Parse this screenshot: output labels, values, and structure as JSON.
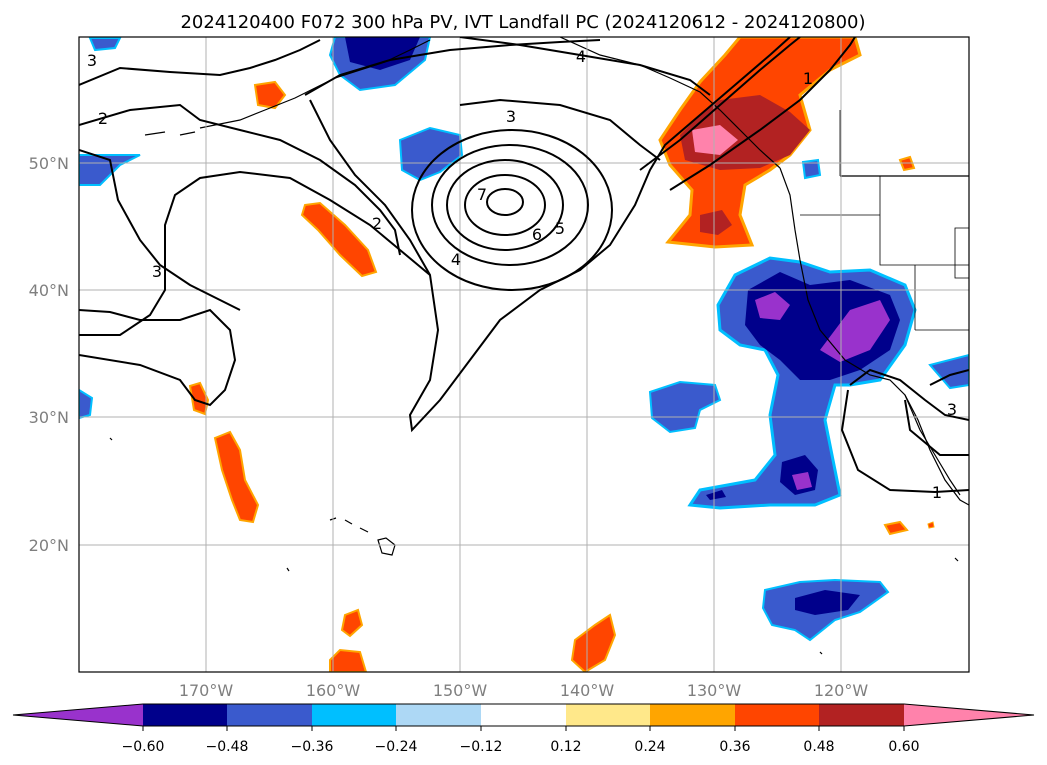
{
  "figure": {
    "title": "2024120400 F072 300 hPa PV, IVT Landfall PC (2024120612 - 2024120800)"
  },
  "map": {
    "lat_labels": [
      "50°N",
      "40°N",
      "30°N",
      "20°N"
    ],
    "lon_labels": [
      "170°W",
      "160°W",
      "150°W",
      "140°W",
      "130°W",
      "120°W"
    ],
    "pv_contour_labels": [
      "2",
      "3",
      "3",
      "3",
      "4",
      "4",
      "5",
      "6",
      "7",
      "2",
      "3",
      "1",
      "1"
    ]
  },
  "colorbar": {
    "ticks": [
      "−0.60",
      "−0.48",
      "−0.36",
      "−0.24",
      "−0.12",
      "0.12",
      "0.24",
      "0.36",
      "0.48",
      "0.60"
    ],
    "colors": [
      "#9932CC",
      "#00008B",
      "#3A5ACD",
      "#00BFFF",
      "#ADD8F5",
      "#FFFFFF",
      "#FFE88A",
      "#FFA500",
      "#FF4500",
      "#B22222",
      "#FF82AB"
    ]
  },
  "colors": {
    "grid": "#b0b0b0",
    "contour": "#000000"
  }
}
